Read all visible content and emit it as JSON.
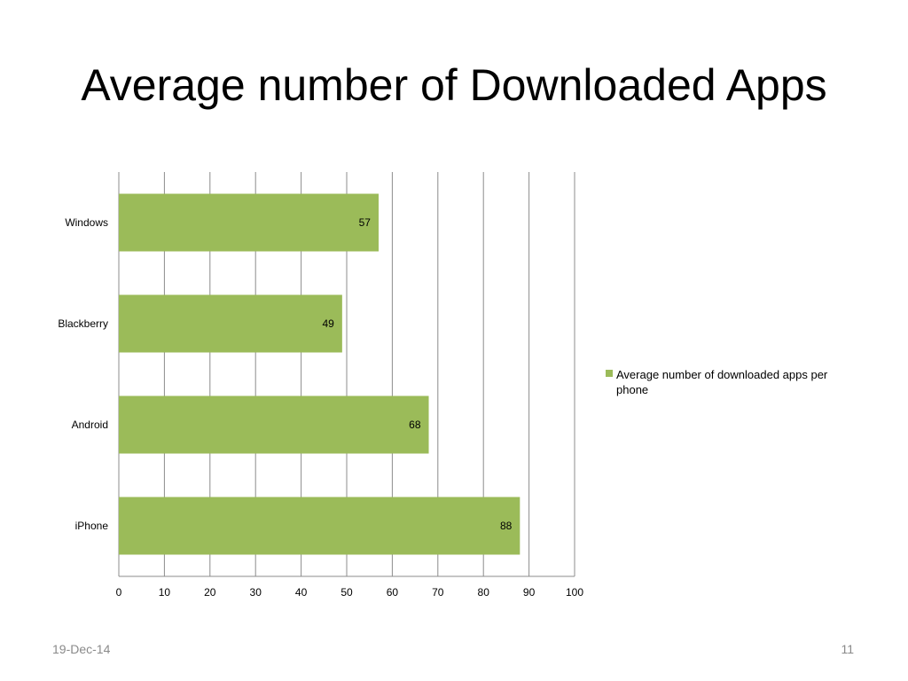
{
  "slide": {
    "title": "Average number of Downloaded Apps",
    "date": "19-Dec-14",
    "page_number": "11"
  },
  "chart_data": {
    "type": "bar",
    "orientation": "horizontal",
    "title": "",
    "xlabel": "",
    "ylabel": "",
    "categories": [
      "Windows",
      "Blackberry",
      "Android",
      "iPhone"
    ],
    "series": [
      {
        "name": "Average number of downloaded apps per phone",
        "values": [
          57,
          49,
          68,
          88
        ],
        "color": "#9bbb59"
      }
    ],
    "xlim": [
      0,
      100
    ],
    "xticks": [
      0,
      10,
      20,
      30,
      40,
      50,
      60,
      70,
      80,
      90,
      100
    ],
    "grid": true,
    "legend_position": "right",
    "data_labels": true
  }
}
